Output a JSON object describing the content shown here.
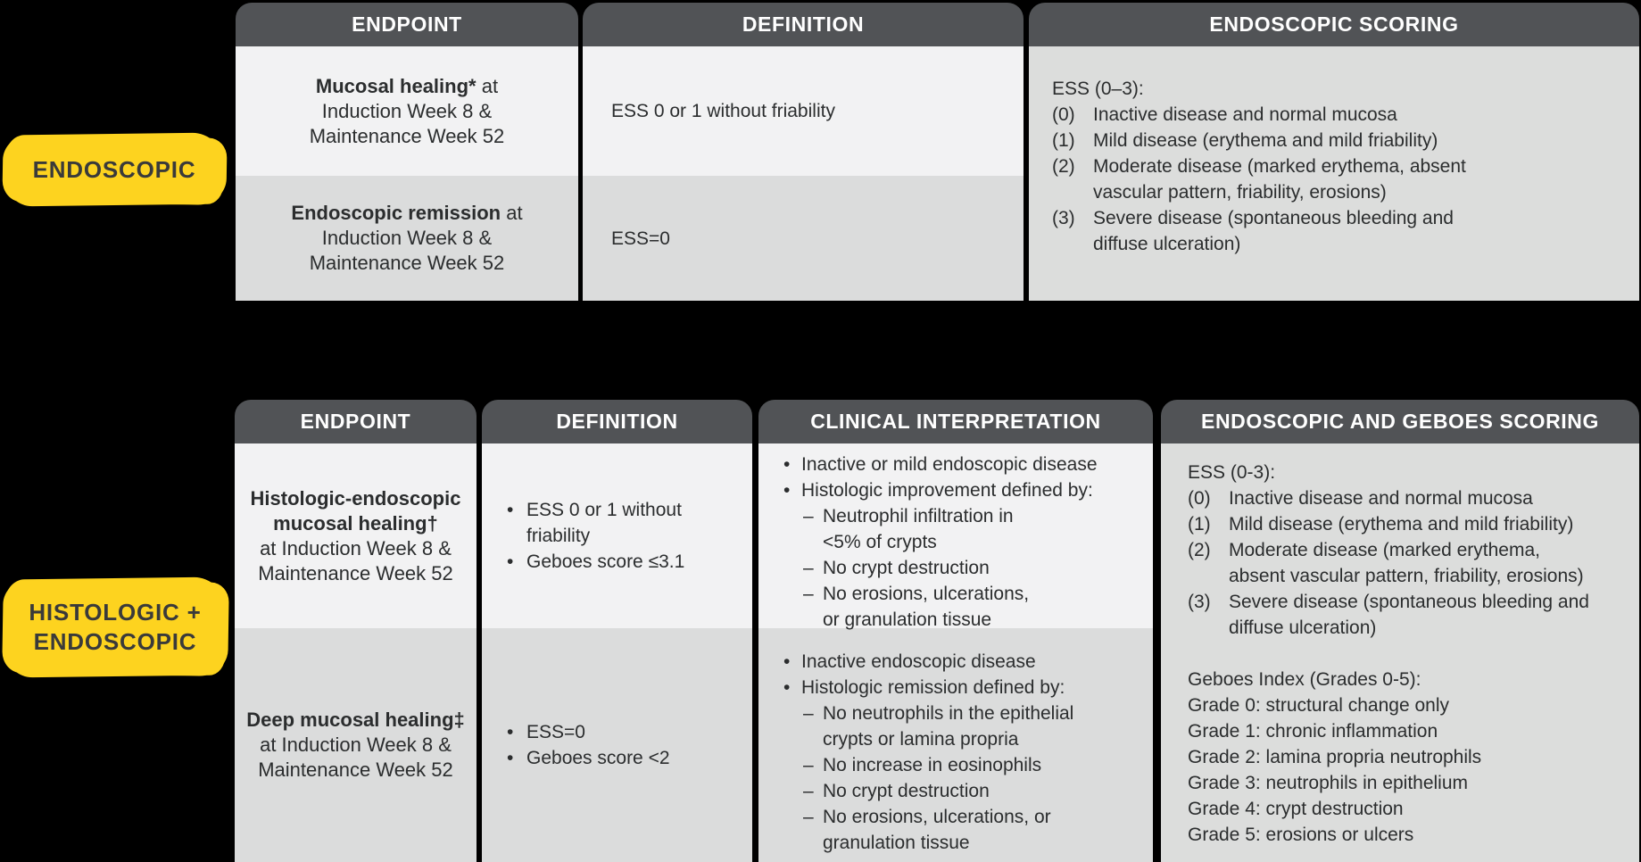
{
  "colors": {
    "page_bg": "#000000",
    "header_bg": "#515356",
    "header_text": "#ffffff",
    "row_light": "#f2f2f3",
    "row_mid": "#dbdcdc",
    "merged_bg": "#dcdddc",
    "highlight_yellow": "#fdd31f",
    "label_text": "#3a3a3a",
    "body_text": "#2b2d2e"
  },
  "labels": {
    "endoscopic": "ENDOSCOPIC",
    "histologic_endoscopic": "HISTOLOGIC +\nENDOSCOPIC"
  },
  "table1": {
    "headers": [
      "ENDPOINT",
      "DEFINITION",
      "ENDOSCOPIC SCORING"
    ],
    "row1": {
      "endpoint_lines": [
        {
          "b": "Mucosal healing*",
          "t": " at"
        },
        {
          "t": "Induction Week 8 &"
        },
        {
          "t": "Maintenance Week 52"
        }
      ],
      "definition_lines": [
        {
          "t": "ESS 0 or 1 without friability"
        }
      ]
    },
    "row2": {
      "endpoint_lines": [
        {
          "b": "Endoscopic remission",
          "t": " at"
        },
        {
          "t": "Induction Week 8 &"
        },
        {
          "t": "Maintenance Week 52"
        }
      ],
      "definition_lines": [
        {
          "t": "ESS=0"
        }
      ]
    },
    "scoring": {
      "title": "ESS (0–3):",
      "items": [
        {
          "m": "(0)",
          "t": "Inactive disease and normal mucosa",
          "i": 1
        },
        {
          "m": "(1)",
          "t": "Mild disease (erythema and mild friability)",
          "i": 1
        },
        {
          "m": "(2)",
          "t": "Moderate disease (marked erythema, absent",
          "i": 1
        },
        {
          "t": "vascular pattern, friability, erosions)",
          "i": 1,
          "c": 1
        },
        {
          "m": "(3)",
          "t": "Severe disease (spontaneous bleeding and",
          "i": 1
        },
        {
          "t": "diffuse ulceration)",
          "i": 1,
          "c": 1
        }
      ]
    }
  },
  "table2": {
    "headers": [
      "ENDPOINT",
      "DEFINITION",
      "CLINICAL INTERPRETATION",
      "ENDOSCOPIC AND GEBOES SCORING"
    ],
    "row1": {
      "endpoint_lines": [
        {
          "b": "Histologic-endoscopic"
        },
        {
          "b": "mucosal healing†"
        },
        {
          "t": "at Induction Week 8 &"
        },
        {
          "t": "Maintenance Week 52"
        }
      ],
      "definition_lines": [
        {
          "m": "•",
          "t": "ESS 0 or 1 without",
          "i": 1
        },
        {
          "t": "friability",
          "i": 1,
          "c": 1
        },
        {
          "m": "•",
          "t": "Geboes score ≤3.1",
          "i": 1
        }
      ],
      "clinical_lines": [
        {
          "m": "•",
          "t": "Inactive or mild endoscopic disease",
          "i": 1
        },
        {
          "m": "•",
          "t": "Histologic improvement defined by:",
          "i": 1
        },
        {
          "m": "–",
          "t": "Neutrophil infiltration in",
          "i": 2
        },
        {
          "t": "<5% of crypts",
          "i": 2,
          "c": 1
        },
        {
          "m": "–",
          "t": "No crypt destruction",
          "i": 2
        },
        {
          "m": "–",
          "t": "No erosions, ulcerations,",
          "i": 2
        },
        {
          "t": "or granulation tissue",
          "i": 2,
          "c": 1
        }
      ]
    },
    "row2": {
      "endpoint_lines": [
        {
          "b": "Deep mucosal healing‡"
        },
        {
          "t": "at Induction Week 8 &"
        },
        {
          "t": "Maintenance Week 52"
        }
      ],
      "definition_lines": [
        {
          "m": "•",
          "t": "ESS=0",
          "i": 1
        },
        {
          "m": "•",
          "t": "Geboes score <2",
          "i": 1
        }
      ],
      "clinical_lines": [
        {
          "m": "•",
          "t": "Inactive endoscopic disease",
          "i": 1
        },
        {
          "m": "•",
          "t": "Histologic remission defined by:",
          "i": 1
        },
        {
          "m": "–",
          "t": "No neutrophils in the epithelial",
          "i": 2
        },
        {
          "t": "crypts or lamina propria",
          "i": 2,
          "c": 1
        },
        {
          "m": "–",
          "t": "No increase in eosinophils",
          "i": 2
        },
        {
          "m": "–",
          "t": "No crypt destruction",
          "i": 2
        },
        {
          "m": "–",
          "t": "No erosions, ulcerations, or",
          "i": 2
        },
        {
          "t": "granulation tissue",
          "i": 2,
          "c": 1
        }
      ]
    },
    "scoring": {
      "ess_title": "ESS (0-3):",
      "ess_items": [
        {
          "m": "(0)",
          "t": "Inactive disease and normal mucosa",
          "i": 1
        },
        {
          "m": "(1)",
          "t": "Mild disease (erythema and mild friability)",
          "i": 1
        },
        {
          "m": "(2)",
          "t": "Moderate disease (marked erythema,",
          "i": 1
        },
        {
          "t": "absent vascular pattern, friability, erosions)",
          "i": 1,
          "c": 1
        },
        {
          "m": "(3)",
          "t": "Severe disease (spontaneous bleeding and",
          "i": 1
        },
        {
          "t": "diffuse ulceration)",
          "i": 1,
          "c": 1
        }
      ],
      "geboes_title": "Geboes Index (Grades 0-5):",
      "geboes_lines": [
        {
          "t": "Grade 0: structural change only"
        },
        {
          "t": "Grade 1: chronic inflammation"
        },
        {
          "t": "Grade 2: lamina propria neutrophils"
        },
        {
          "t": "Grade 3: neutrophils in epithelium"
        },
        {
          "t": "Grade 4: crypt destruction"
        },
        {
          "t": "Grade 5: erosions or ulcers"
        }
      ]
    }
  }
}
